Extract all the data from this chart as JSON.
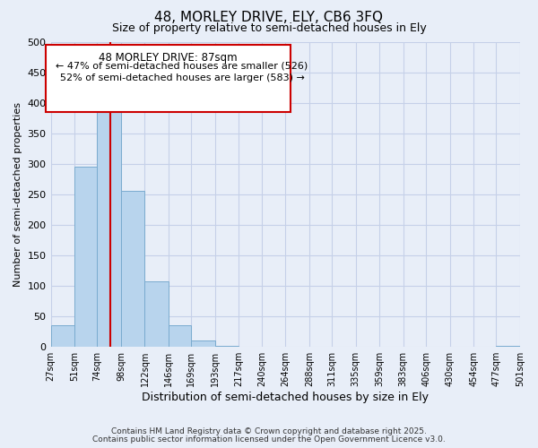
{
  "title": "48, MORLEY DRIVE, ELY, CB6 3FQ",
  "subtitle": "Size of property relative to semi-detached houses in Ely",
  "xlabel": "Distribution of semi-detached houses by size in Ely",
  "ylabel": "Number of semi-detached properties",
  "bin_edges": [
    27,
    51,
    74,
    98,
    122,
    146,
    169,
    193,
    217,
    240,
    264,
    288,
    311,
    335,
    359,
    383,
    406,
    430,
    454,
    477,
    501
  ],
  "bin_labels": [
    "27sqm",
    "51sqm",
    "74sqm",
    "98sqm",
    "122sqm",
    "146sqm",
    "169sqm",
    "193sqm",
    "217sqm",
    "240sqm",
    "264sqm",
    "288sqm",
    "311sqm",
    "335sqm",
    "359sqm",
    "383sqm",
    "406sqm",
    "430sqm",
    "454sqm",
    "477sqm",
    "501sqm"
  ],
  "counts": [
    35,
    295,
    385,
    255,
    108,
    35,
    10,
    2,
    0,
    0,
    0,
    0,
    0,
    0,
    0,
    0,
    0,
    0,
    0,
    2
  ],
  "bar_color": "#b8d4ed",
  "bar_edge_color": "#7aabcf",
  "vline_x": 87,
  "vline_color": "#cc0000",
  "annotation_title": "48 MORLEY DRIVE: 87sqm",
  "annotation_line1": "← 47% of semi-detached houses are smaller (526)",
  "annotation_line2": "52% of semi-detached houses are larger (583) →",
  "annotation_box_color": "#cc0000",
  "ylim": [
    0,
    500
  ],
  "yticks": [
    0,
    50,
    100,
    150,
    200,
    250,
    300,
    350,
    400,
    450,
    500
  ],
  "background_color": "#e8eef8",
  "grid_color": "#c5d0e8",
  "footer1": "Contains HM Land Registry data © Crown copyright and database right 2025.",
  "footer2": "Contains public sector information licensed under the Open Government Licence v3.0."
}
